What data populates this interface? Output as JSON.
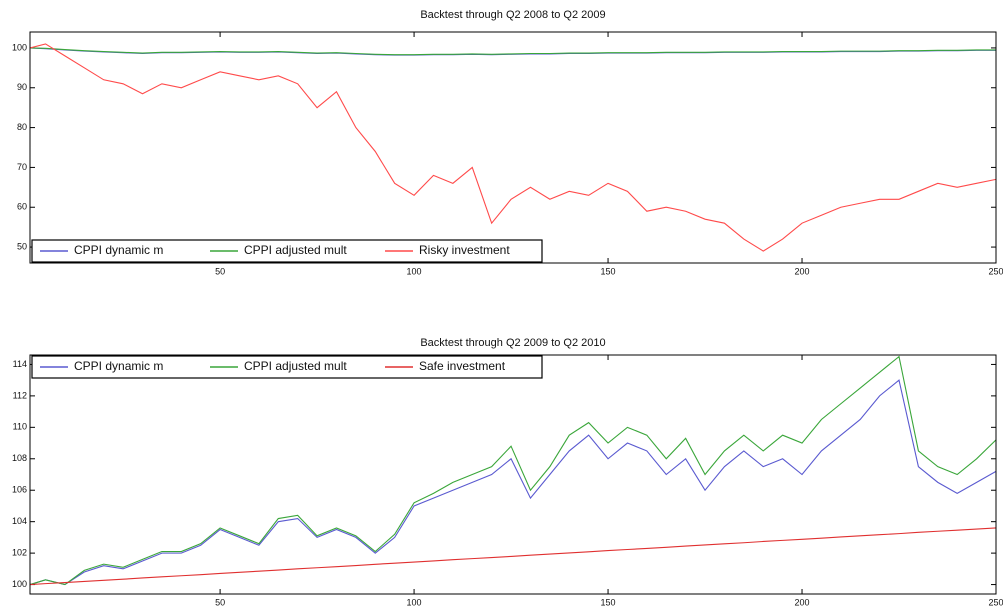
{
  "chart_data": [
    {
      "type": "line",
      "title": "Backtest through Q2 2008 to Q2 2009",
      "x": [
        1,
        5,
        10,
        15,
        20,
        25,
        30,
        35,
        40,
        45,
        50,
        55,
        60,
        65,
        70,
        75,
        80,
        85,
        90,
        95,
        100,
        105,
        110,
        115,
        120,
        125,
        130,
        135,
        140,
        145,
        150,
        155,
        160,
        165,
        170,
        175,
        180,
        185,
        190,
        195,
        200,
        205,
        210,
        215,
        220,
        225,
        230,
        235,
        240,
        245,
        250
      ],
      "series": [
        {
          "name": "CPPI dynamic m",
          "color": "#5a5ad0",
          "values": [
            100,
            99.8,
            99.5,
            99.2,
            99,
            98.8,
            98.6,
            98.8,
            98.8,
            98.9,
            99,
            98.9,
            98.9,
            99,
            98.8,
            98.6,
            98.7,
            98.5,
            98.3,
            98.2,
            98.2,
            98.3,
            98.3,
            98.4,
            98.3,
            98.4,
            98.5,
            98.5,
            98.6,
            98.6,
            98.7,
            98.7,
            98.7,
            98.8,
            98.8,
            98.8,
            98.9,
            98.9,
            98.9,
            99,
            99,
            99,
            99.1,
            99.1,
            99.1,
            99.2,
            99.2,
            99.3,
            99.3,
            99.4,
            99.4
          ]
        },
        {
          "name": "CPPI adjusted mult",
          "color": "#3aa63a",
          "values": [
            100,
            99.9,
            99.6,
            99.3,
            99.1,
            98.9,
            98.7,
            98.9,
            98.9,
            99,
            99.1,
            99,
            99,
            99.1,
            98.9,
            98.7,
            98.8,
            98.6,
            98.4,
            98.3,
            98.3,
            98.4,
            98.4,
            98.5,
            98.4,
            98.5,
            98.6,
            98.6,
            98.7,
            98.7,
            98.8,
            98.8,
            98.8,
            98.9,
            98.9,
            98.9,
            99,
            99,
            99,
            99.1,
            99.1,
            99.1,
            99.2,
            99.2,
            99.2,
            99.3,
            99.3,
            99.4,
            99.4,
            99.5,
            99.5
          ]
        },
        {
          "name": "Risky investment",
          "color": "#ff4a4a",
          "values": [
            100,
            101,
            98,
            95,
            92,
            91,
            88.5,
            91,
            90,
            92,
            94,
            93,
            92,
            93,
            91,
            85,
            89,
            80,
            74,
            66,
            63,
            68,
            66,
            70,
            56,
            62,
            65,
            62,
            64,
            63,
            66,
            64,
            59,
            60,
            59,
            57,
            56,
            52,
            49,
            52,
            56,
            58,
            60,
            61,
            62,
            62,
            64,
            66,
            65,
            66,
            67
          ]
        }
      ],
      "xlim": [
        1,
        250
      ],
      "xticks": [
        50,
        100,
        150,
        200,
        250
      ],
      "ylim": [
        46,
        104
      ],
      "yticks": [
        50,
        60,
        70,
        80,
        90,
        100
      ],
      "legend": "lower left"
    },
    {
      "type": "line",
      "title": "Backtest through Q2 2009 to Q2 2010",
      "x": [
        1,
        5,
        10,
        15,
        20,
        25,
        30,
        35,
        40,
        45,
        50,
        55,
        60,
        65,
        70,
        75,
        80,
        85,
        90,
        95,
        100,
        105,
        110,
        115,
        120,
        125,
        130,
        135,
        140,
        145,
        150,
        155,
        160,
        165,
        170,
        175,
        180,
        185,
        190,
        195,
        200,
        205,
        210,
        215,
        220,
        225,
        230,
        235,
        240,
        245,
        250
      ],
      "series": [
        {
          "name": "CPPI dynamic m",
          "color": "#5a5ad0",
          "values": [
            100,
            100.3,
            100,
            100.8,
            101.2,
            101,
            101.5,
            102,
            102,
            102.5,
            103.5,
            103,
            102.5,
            104,
            104.2,
            103,
            103.5,
            103,
            102,
            103,
            105,
            105.5,
            106,
            106.5,
            107,
            108,
            105.5,
            107,
            108.5,
            109.5,
            108,
            109,
            108.5,
            107,
            108,
            106,
            107.5,
            108.5,
            107.5,
            108,
            107,
            108.5,
            109.5,
            110.5,
            112,
            113,
            107.5,
            106.5,
            105.8,
            106.5,
            107.2
          ]
        },
        {
          "name": "CPPI adjusted mult",
          "color": "#3aa63a",
          "values": [
            100,
            100.3,
            100,
            100.9,
            101.3,
            101.1,
            101.6,
            102.1,
            102.1,
            102.6,
            103.6,
            103.1,
            102.6,
            104.2,
            104.4,
            103.1,
            103.6,
            103.1,
            102.1,
            103.2,
            105.2,
            105.8,
            106.5,
            107,
            107.5,
            108.8,
            106,
            107.5,
            109.5,
            110.3,
            109,
            110,
            109.5,
            108,
            109.3,
            107,
            108.5,
            109.5,
            108.5,
            109.5,
            109,
            110.5,
            111.5,
            112.5,
            113.5,
            114.5,
            108.5,
            107.5,
            107,
            108,
            109.2
          ]
        },
        {
          "name": "Safe investment",
          "color": "#e03030",
          "values": [
            100,
            100.06,
            100.13,
            100.2,
            100.27,
            100.34,
            100.42,
            100.49,
            100.56,
            100.63,
            100.71,
            100.78,
            100.85,
            100.92,
            101,
            101.07,
            101.14,
            101.21,
            101.29,
            101.36,
            101.43,
            101.5,
            101.58,
            101.65,
            101.72,
            101.79,
            101.87,
            101.94,
            102.01,
            102.08,
            102.16,
            102.23,
            102.3,
            102.37,
            102.45,
            102.52,
            102.59,
            102.66,
            102.74,
            102.81,
            102.88,
            102.95,
            103.03,
            103.1,
            103.17,
            103.24,
            103.32,
            103.39,
            103.46,
            103.53,
            103.6
          ]
        }
      ],
      "xlim": [
        1,
        250
      ],
      "xticks": [
        50,
        100,
        150,
        200,
        250
      ],
      "ylim": [
        99.4,
        114.6
      ],
      "yticks": [
        100,
        102,
        104,
        106,
        108,
        110,
        112,
        114
      ],
      "legend": "upper left"
    }
  ]
}
